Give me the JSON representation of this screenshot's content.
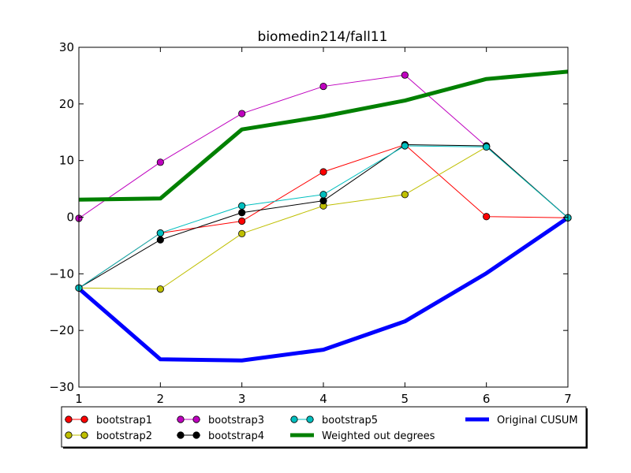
{
  "chart_data": {
    "type": "line",
    "title": "biomedin214/fall11",
    "xlabel": "",
    "ylabel": "",
    "xlim": [
      1,
      7
    ],
    "ylim": [
      -30,
      30
    ],
    "x_ticks": [
      1,
      2,
      3,
      4,
      5,
      6,
      7
    ],
    "y_ticks": [
      -30,
      -20,
      -10,
      0,
      10,
      20,
      30
    ],
    "x_tick_labels": [
      "1",
      "2",
      "3",
      "4",
      "5",
      "6",
      "7"
    ],
    "y_tick_labels": [
      "−30",
      "−20",
      "−10",
      "0",
      "10",
      "20",
      "30"
    ],
    "grid": false,
    "legend_position": "below",
    "x": [
      1,
      2,
      3,
      4,
      5,
      6,
      7
    ],
    "series": [
      {
        "name": "bootstrap1",
        "color": "#ff0000",
        "marker": true,
        "width": 1,
        "values": [
          -12.5,
          -2.8,
          -0.7,
          8.0,
          12.8,
          0.1,
          -0.1
        ]
      },
      {
        "name": "bootstrap2",
        "color": "#bfbf00",
        "marker": true,
        "width": 1,
        "values": [
          -12.5,
          -12.7,
          -2.9,
          2.0,
          4.0,
          12.4,
          -0.1
        ]
      },
      {
        "name": "bootstrap3",
        "color": "#bf00bf",
        "marker": true,
        "width": 1,
        "values": [
          -0.2,
          9.7,
          18.3,
          23.1,
          25.1,
          12.5,
          -0.1
        ]
      },
      {
        "name": "bootstrap4",
        "color": "#000000",
        "marker": true,
        "width": 1,
        "values": [
          -12.5,
          -4.0,
          0.8,
          2.9,
          12.8,
          12.6,
          -0.1
        ]
      },
      {
        "name": "bootstrap5",
        "color": "#00bfbf",
        "marker": true,
        "width": 1,
        "values": [
          -12.5,
          -2.8,
          2.0,
          4.0,
          12.6,
          12.4,
          -0.1
        ]
      },
      {
        "name": "Weighted out degrees",
        "color": "#008000",
        "marker": false,
        "width": 5,
        "values": [
          3.1,
          3.3,
          15.5,
          17.8,
          20.6,
          24.4,
          25.7
        ]
      },
      {
        "name": "Original CUSUM",
        "color": "#0000ff",
        "marker": false,
        "width": 5,
        "values": [
          -12.6,
          -25.1,
          -25.3,
          -23.4,
          -18.4,
          -9.9,
          -0.1
        ]
      }
    ]
  }
}
